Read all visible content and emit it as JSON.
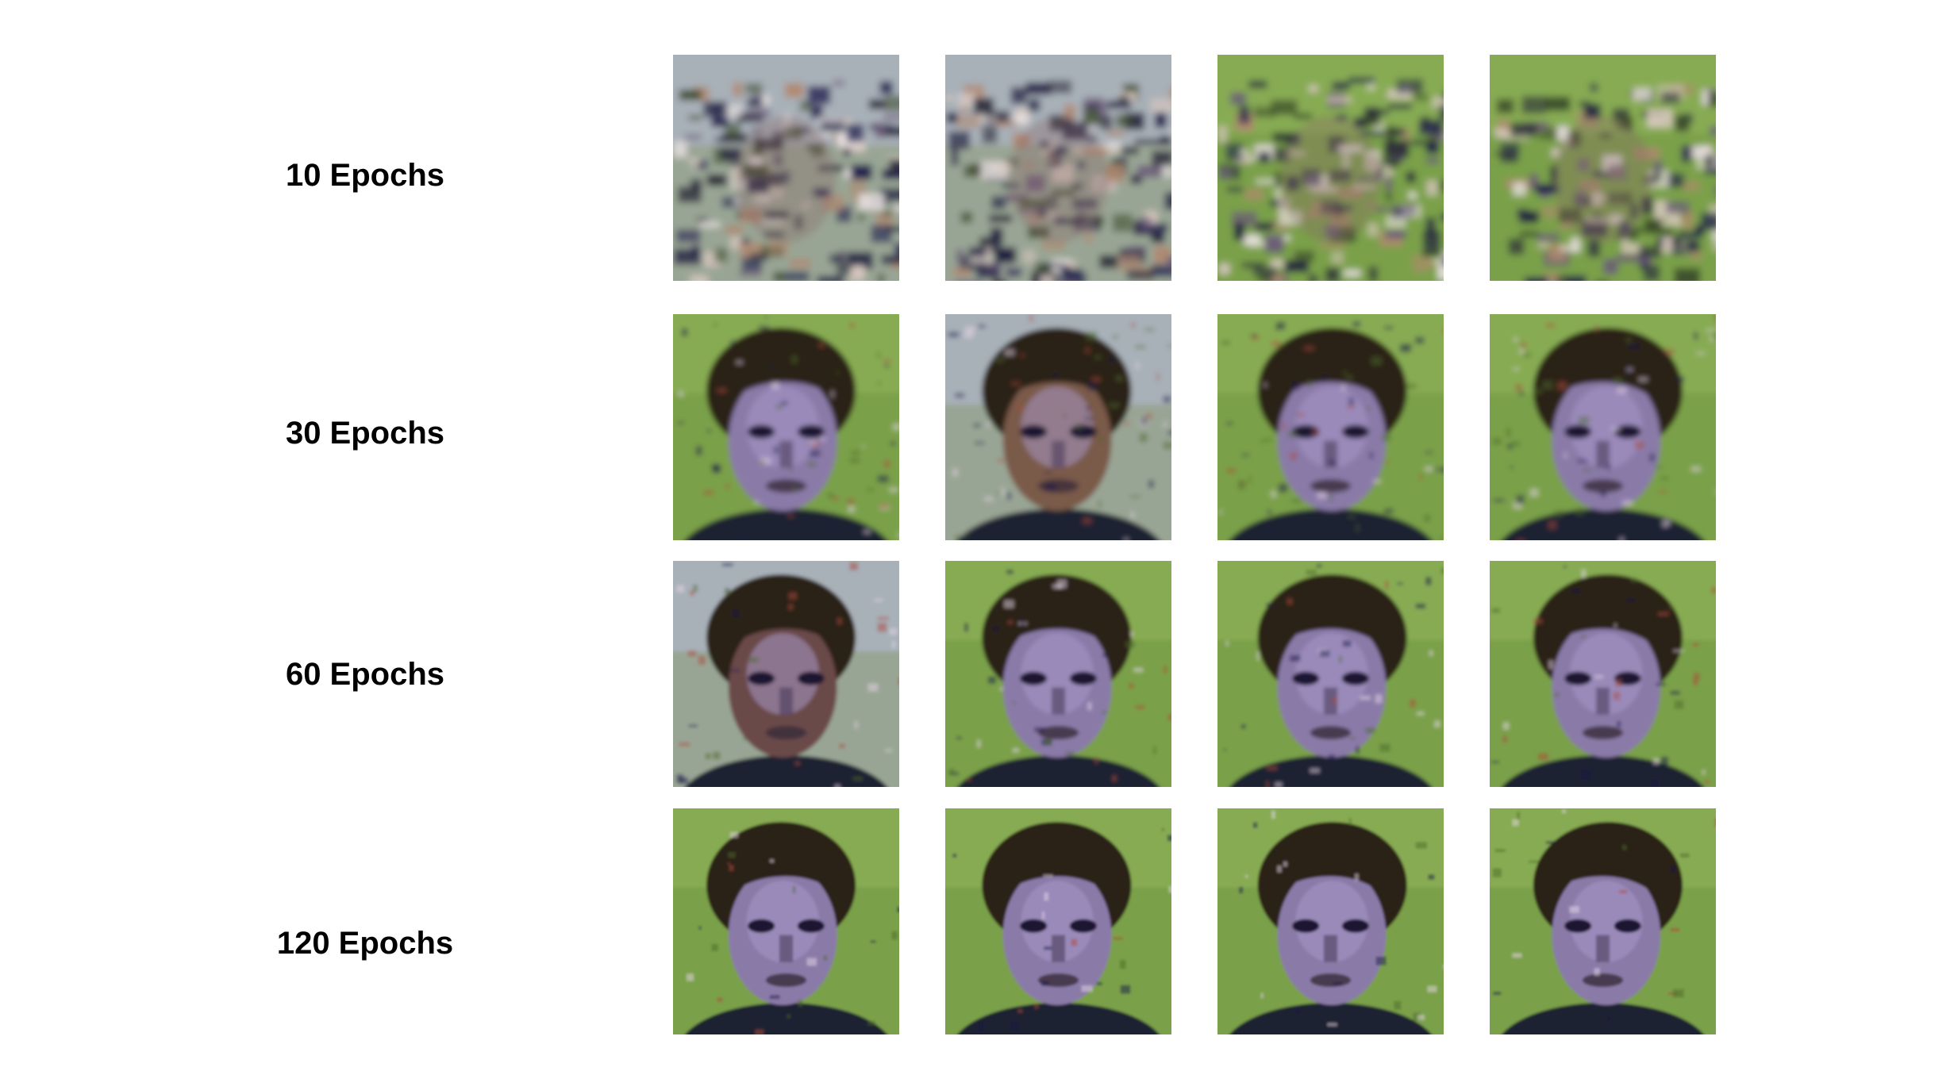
{
  "rows": [
    {
      "label": "10 Epochs",
      "stage": 0
    },
    {
      "label": "30 Epochs",
      "stage": 1
    },
    {
      "label": "60 Epochs",
      "stage": 2
    },
    {
      "label": "120 Epochs",
      "stage": 3
    }
  ],
  "columns": 4,
  "palette": {
    "background_green": "#7aa048",
    "background_grey": "#a8b0b8",
    "hair_dark": "#2a2018",
    "skin": "#8a7aa8",
    "noise_blue": "#1a1a4a"
  }
}
